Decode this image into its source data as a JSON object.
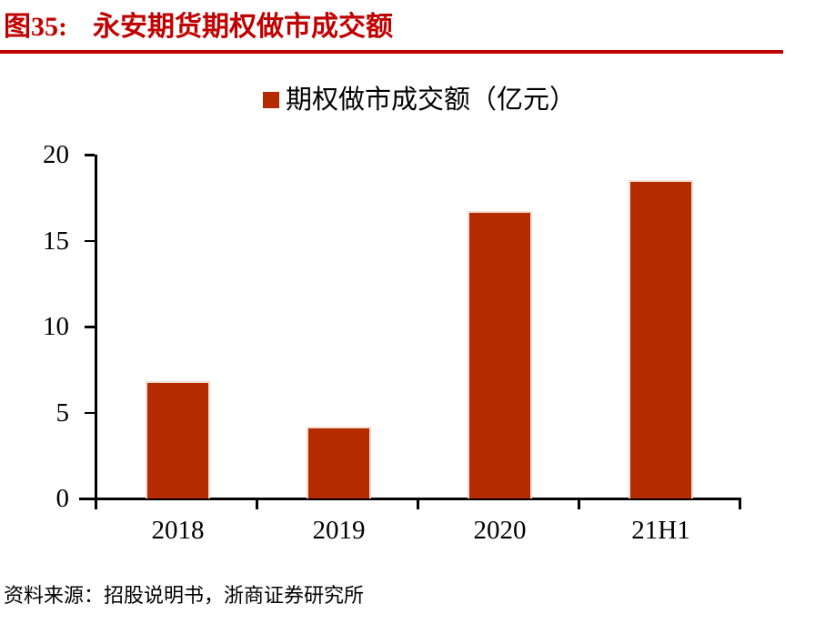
{
  "figure": {
    "label": "图35:",
    "title": "永安期货期权做市成交额"
  },
  "legend": {
    "label": "期权做市成交额（亿元）"
  },
  "source": {
    "text": "资料来源：招股说明书，浙商证券研究所"
  },
  "colors": {
    "accent_red": "#C00000",
    "bar_red": "#B42B00",
    "axis_black": "#000000"
  },
  "chart_data": {
    "type": "bar",
    "title": "永安期货期权做市成交额",
    "categories": [
      "2018",
      "2019",
      "2020",
      "21H1"
    ],
    "values": [
      6.8,
      4.2,
      16.7,
      18.5
    ],
    "series_name": "期权做市成交额（亿元）",
    "xlabel": "",
    "ylabel": "",
    "ylim": [
      0,
      20
    ],
    "yticks": [
      0,
      5,
      10,
      15,
      20
    ],
    "grid": false,
    "legend_position": "top-center",
    "bar_color": "#B42B00"
  }
}
